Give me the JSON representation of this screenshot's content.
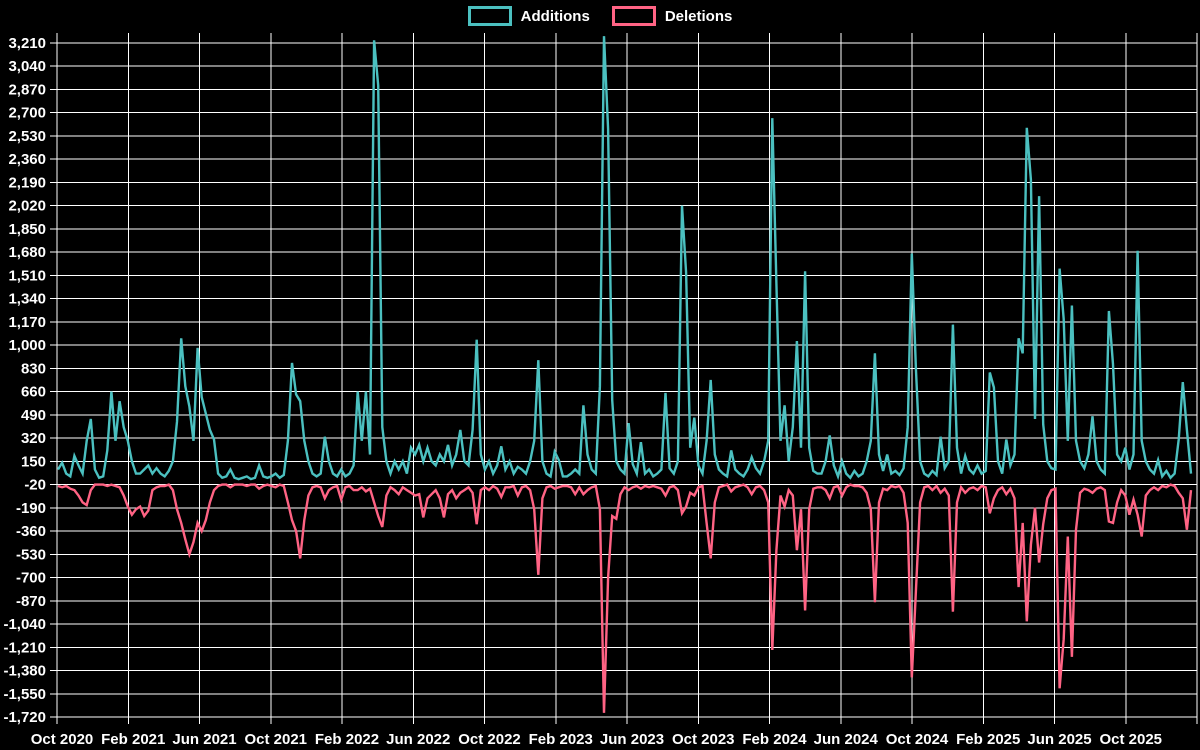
{
  "chart_data": {
    "type": "line",
    "title": "",
    "x_axis": {
      "tick_labels": [
        "Oct 2020",
        "Feb 2021",
        "Jun 2021",
        "Oct 2021",
        "Feb 2022",
        "Jun 2022",
        "Oct 2022",
        "Feb 2023",
        "Jun 2023",
        "Oct 2023",
        "Feb 2024",
        "Jun 2024",
        "Oct 2024",
        "Feb 2025",
        "Jun 2025",
        "Oct 2025"
      ],
      "label_interval": "4 months",
      "grid": true
    },
    "y_axis": {
      "min": -1720,
      "max": 3210,
      "tick_step": 170,
      "ticks": [
        3210,
        3040,
        2870,
        2700,
        2530,
        2360,
        2190,
        2020,
        1850,
        1680,
        1510,
        1340,
        1170,
        1000,
        830,
        660,
        490,
        320,
        150,
        -20,
        -190,
        -360,
        -530,
        -700,
        -870,
        -1040,
        -1210,
        -1380,
        -1550,
        -1720
      ],
      "grid": true
    },
    "x_start": "2020-10",
    "x_interval": "weekly",
    "legend_position": "top",
    "series": [
      {
        "name": "Additions",
        "color": "#4BC0C0",
        "values": [
          90,
          140,
          60,
          40,
          190,
          120,
          60,
          300,
          460,
          90,
          30,
          40,
          230,
          660,
          300,
          590,
          400,
          300,
          150,
          60,
          60,
          90,
          120,
          60,
          100,
          60,
          40,
          80,
          150,
          440,
          1050,
          700,
          550,
          300,
          980,
          620,
          500,
          380,
          310,
          60,
          30,
          40,
          90,
          30,
          20,
          30,
          40,
          20,
          30,
          120,
          40,
          30,
          40,
          60,
          30,
          50,
          300,
          870,
          640,
          590,
          300,
          150,
          60,
          40,
          60,
          330,
          150,
          60,
          40,
          90,
          40,
          60,
          120,
          660,
          300,
          660,
          200,
          3230,
          2900,
          400,
          150,
          60,
          150,
          90,
          150,
          60,
          250,
          200,
          270,
          150,
          250,
          150,
          120,
          200,
          150,
          270,
          120,
          200,
          380,
          150,
          120,
          380,
          1040,
          200,
          90,
          150,
          60,
          120,
          260,
          90,
          150,
          60,
          110,
          90,
          60,
          150,
          300,
          890,
          150,
          60,
          40,
          220,
          160,
          40,
          40,
          60,
          90,
          60,
          560,
          200,
          90,
          60,
          700,
          3260,
          2580,
          600,
          150,
          90,
          60,
          430,
          130,
          60,
          290,
          60,
          90,
          40,
          60,
          90,
          650,
          100,
          60,
          150,
          2020,
          1530,
          250,
          470,
          120,
          60,
          300,
          745,
          200,
          90,
          60,
          40,
          230,
          90,
          60,
          40,
          90,
          180,
          100,
          60,
          150,
          300,
          2660,
          1450,
          300,
          560,
          150,
          400,
          1030,
          250,
          1540,
          250,
          80,
          60,
          60,
          150,
          340,
          120,
          40,
          150,
          60,
          30,
          80,
          40,
          60,
          150,
          300,
          940,
          200,
          80,
          200,
          60,
          80,
          50,
          100,
          400,
          1670,
          830,
          150,
          60,
          40,
          80,
          50,
          330,
          100,
          150,
          1150,
          250,
          60,
          190,
          90,
          60,
          120,
          60,
          80,
          800,
          690,
          150,
          60,
          310,
          120,
          200,
          1050,
          940,
          2590,
          2210,
          460,
          2090,
          420,
          150,
          100,
          90,
          1560,
          1190,
          300,
          1290,
          300,
          150,
          100,
          200,
          480,
          150,
          90,
          60,
          1250,
          860,
          200,
          150,
          250,
          90,
          200,
          1690,
          300,
          150,
          90,
          60,
          160,
          40,
          80,
          30,
          60,
          310,
          730,
          380,
          60
        ]
      },
      {
        "name": "Deletions",
        "color": "#FF6384",
        "values": [
          -30,
          -40,
          -30,
          -50,
          -60,
          -100,
          -150,
          -170,
          -60,
          -20,
          -20,
          -20,
          -30,
          -20,
          -30,
          -40,
          -100,
          -180,
          -240,
          -200,
          -180,
          -250,
          -210,
          -60,
          -40,
          -30,
          -30,
          -20,
          -60,
          -200,
          -300,
          -420,
          -530,
          -440,
          -300,
          -360,
          -280,
          -150,
          -60,
          -30,
          -20,
          -20,
          -40,
          -20,
          -20,
          -20,
          -30,
          -20,
          -20,
          -50,
          -30,
          -20,
          -30,
          -40,
          -20,
          -30,
          -150,
          -280,
          -360,
          -560,
          -280,
          -100,
          -40,
          -30,
          -40,
          -120,
          -60,
          -40,
          -30,
          -130,
          -40,
          -30,
          -60,
          -60,
          -40,
          -70,
          -50,
          -150,
          -250,
          -330,
          -100,
          -40,
          -60,
          -90,
          -40,
          -60,
          -80,
          -100,
          -90,
          -260,
          -120,
          -90,
          -60,
          -120,
          -260,
          -90,
          -60,
          -120,
          -80,
          -60,
          -40,
          -80,
          -310,
          -60,
          -40,
          -60,
          -30,
          -50,
          -110,
          -40,
          -40,
          -30,
          -100,
          -40,
          -30,
          -60,
          -200,
          -680,
          -120,
          -40,
          -30,
          -50,
          -40,
          -30,
          -30,
          -40,
          -90,
          -40,
          -90,
          -60,
          -40,
          -30,
          -200,
          -1690,
          -700,
          -250,
          -270,
          -90,
          -40,
          -60,
          -40,
          -30,
          -50,
          -30,
          -40,
          -30,
          -40,
          -50,
          -100,
          -40,
          -30,
          -60,
          -230,
          -180,
          -80,
          -100,
          -40,
          -30,
          -300,
          -560,
          -150,
          -40,
          -30,
          -20,
          -70,
          -40,
          -30,
          -20,
          -40,
          -90,
          -40,
          -30,
          -60,
          -150,
          -1230,
          -500,
          -100,
          -180,
          -60,
          -100,
          -500,
          -200,
          -940,
          -200,
          -50,
          -40,
          -40,
          -60,
          -120,
          -40,
          -30,
          -100,
          -40,
          -20,
          -30,
          -30,
          -40,
          -80,
          -200,
          -880,
          -150,
          -50,
          -60,
          -30,
          -40,
          -30,
          -80,
          -300,
          -1430,
          -800,
          -150,
          -40,
          -30,
          -60,
          -30,
          -80,
          -50,
          -100,
          -950,
          -150,
          -40,
          -80,
          -50,
          -40,
          -60,
          -30,
          -40,
          -230,
          -120,
          -60,
          -40,
          -90,
          -50,
          -120,
          -770,
          -300,
          -1020,
          -460,
          -190,
          -590,
          -310,
          -120,
          -60,
          -50,
          -1510,
          -1150,
          -400,
          -1280,
          -350,
          -80,
          -50,
          -60,
          -80,
          -50,
          -40,
          -60,
          -290,
          -300,
          -150,
          -60,
          -100,
          -240,
          -130,
          -240,
          -400,
          -100,
          -60,
          -40,
          -60,
          -30,
          -40,
          -20,
          -30,
          -80,
          -120,
          -350,
          -60
        ]
      }
    ]
  },
  "colors": {
    "background": "#000000",
    "grid": "#ffffff",
    "axis_text": "#ffffff",
    "additions": "#4BC0C0",
    "deletions": "#FF6384"
  }
}
